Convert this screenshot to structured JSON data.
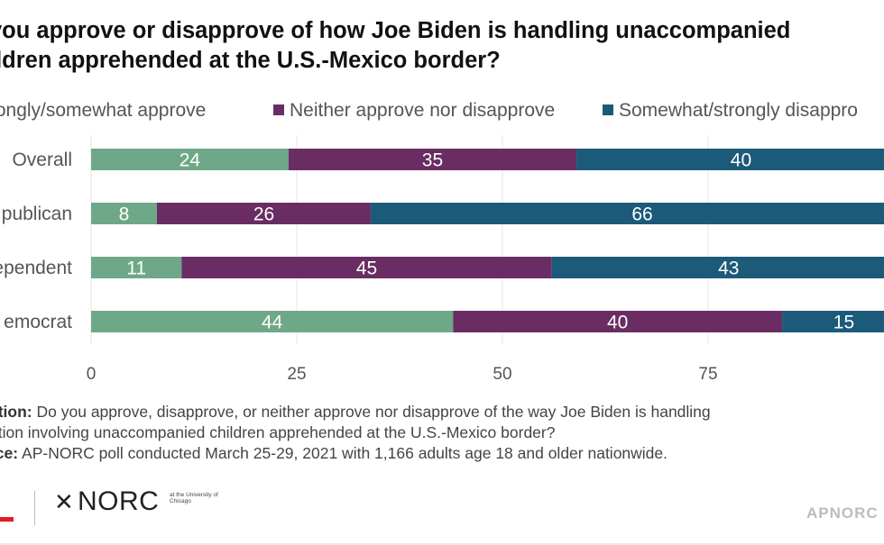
{
  "title": {
    "line1": "you approve or disapprove of how Joe Biden is handling unaccompanied",
    "line2": "ildren apprehended at the U.S.-Mexico border?"
  },
  "colors": {
    "approve": "#6fa888",
    "neither": "#6a2d63",
    "disapprove": "#1b5a78",
    "grid": "#e6e6e6",
    "axis_text": "#555555"
  },
  "chart_data": {
    "type": "bar",
    "orientation": "horizontal",
    "stacked": true,
    "categories": [
      "Overall",
      "publican",
      "ependent",
      "emocrat"
    ],
    "series": [
      {
        "name": "Strongly/somewhat approve",
        "values": [
          24,
          8,
          11,
          44
        ]
      },
      {
        "name": "Neither approve nor disapprove",
        "values": [
          35,
          26,
          45,
          40
        ]
      },
      {
        "name": "Somewhat/strongly disappro",
        "values": [
          40,
          66,
          43,
          15
        ]
      }
    ],
    "x_ticks": [
      "0",
      "25",
      "50",
      "75"
    ],
    "xlim": [
      0,
      100
    ],
    "grid": true,
    "legend": "top",
    "data_labels": true
  },
  "notes": {
    "question_label": "stion:",
    "question_line1": "Do you approve, disapprove, or neither approve nor disapprove of the way Joe Biden is handling",
    "question_line2": "ation involving unaccompanied children apprehended at the U.S.-Mexico border?",
    "source_label": "rce:",
    "source_text": "AP-NORC poll conducted March 25-29, 2021 with 1,166 adults age 18 and older nationwide."
  },
  "logos": {
    "ap": "P",
    "norc": "NORC",
    "norc_sub": "at the University of Chicago",
    "star_icon": "star-icon"
  },
  "watermark": "APNORC"
}
